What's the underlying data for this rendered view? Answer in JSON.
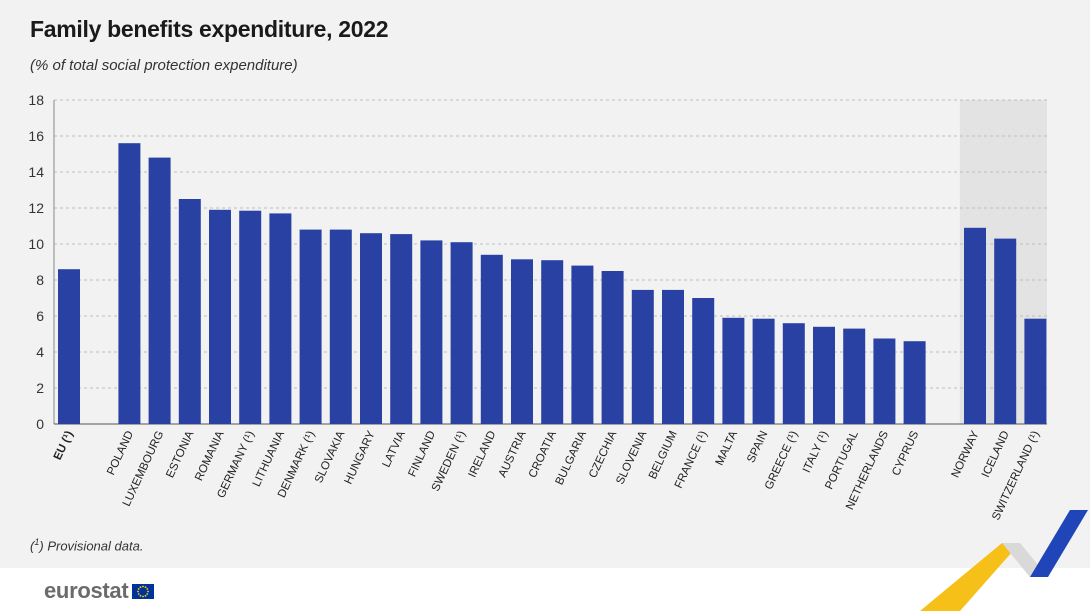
{
  "title": "Family benefits expenditure, 2022",
  "subtitle": "(% of total social protection expenditure)",
  "footnote": {
    "mark": "1",
    "text": " Provisional data."
  },
  "logo": {
    "text": "eurostat",
    "icon": "eu-flag-icon"
  },
  "colors": {
    "bar": "#2a41a4",
    "shade": "#e3e3e3",
    "panel": "#f2f2f2",
    "accent_yellow": "#f6c018",
    "accent_blue": "#1f45b8"
  },
  "chart_data": {
    "type": "bar",
    "title": "Family benefits expenditure, 2022",
    "subtitle": "(% of total social protection expenditure)",
    "ylim": [
      0,
      18
    ],
    "yticks": [
      0,
      2,
      4,
      6,
      8,
      10,
      12,
      14,
      16,
      18
    ],
    "grid": true,
    "shaded_group": "non-EU",
    "categories": [
      "EU (¹)",
      "Poland",
      "Luxembourg",
      "Estonia",
      "Romania",
      "Germany (¹)",
      "Lithuania",
      "Denmark (¹)",
      "Slovakia",
      "Hungary",
      "Latvia",
      "Finland",
      "Sweden (¹)",
      "Ireland",
      "Austria",
      "Croatia",
      "Bulgaria",
      "Czechia",
      "Slovenia",
      "Belgium",
      "France (¹)",
      "Malta",
      "Spain",
      "Greece (¹)",
      "Italy (¹)",
      "Portugal",
      "Netherlands",
      "Cyprus",
      "Norway",
      "Iceland",
      "Switzerland (¹)"
    ],
    "values": [
      8.6,
      15.6,
      14.8,
      12.5,
      11.9,
      11.85,
      11.7,
      10.8,
      10.8,
      10.6,
      10.55,
      10.2,
      10.1,
      9.4,
      9.15,
      9.1,
      8.8,
      8.5,
      7.45,
      7.45,
      7.0,
      5.9,
      5.85,
      5.6,
      5.4,
      5.3,
      4.75,
      4.6,
      10.9,
      10.3,
      5.85
    ],
    "groups": [
      "EU",
      "EU member states",
      "EU member states",
      "EU member states",
      "EU member states",
      "EU member states",
      "EU member states",
      "EU member states",
      "EU member states",
      "EU member states",
      "EU member states",
      "EU member states",
      "EU member states",
      "EU member states",
      "EU member states",
      "EU member states",
      "EU member states",
      "EU member states",
      "EU member states",
      "EU member states",
      "EU member states",
      "EU member states",
      "EU member states",
      "EU member states",
      "EU member states",
      "EU member states",
      "EU member states",
      "EU member states",
      "non-EU",
      "non-EU",
      "non-EU"
    ]
  }
}
